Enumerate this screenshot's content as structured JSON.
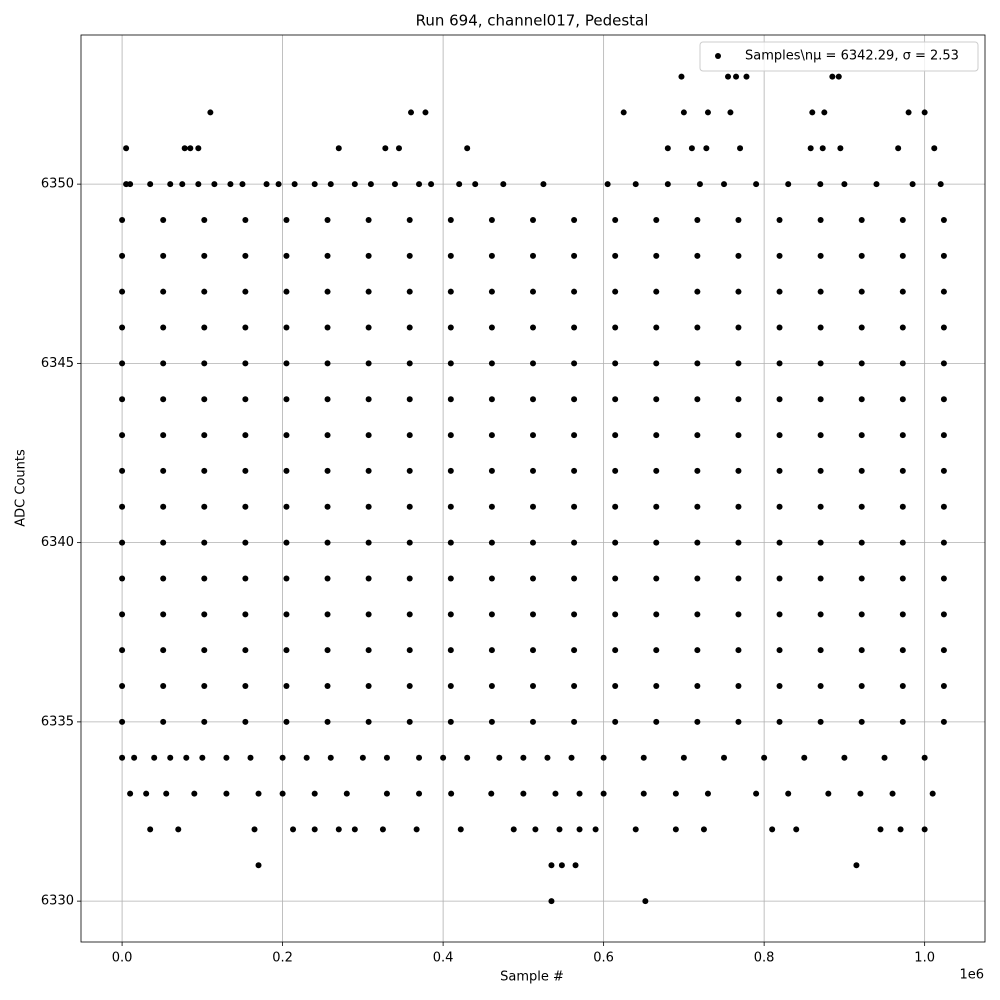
{
  "chart_data": {
    "type": "scatter",
    "title": "Run 694, channel017, Pedestal",
    "x_label": "Sample #",
    "y_label": "ADC Counts",
    "x_offset_label": "1e6",
    "xlim": [
      -51200,
      1075200
    ],
    "ylim": [
      6328.86,
      6354.16
    ],
    "xticks": [
      {
        "value": 0,
        "label": "0.0"
      },
      {
        "value": 200000,
        "label": "0.2"
      },
      {
        "value": 400000,
        "label": "0.4"
      },
      {
        "value": 600000,
        "label": "0.6"
      },
      {
        "value": 800000,
        "label": "0.8"
      },
      {
        "value": 1000000,
        "label": "1.0"
      }
    ],
    "yticks": [
      6330,
      6335,
      6340,
      6345,
      6350
    ],
    "grid": true,
    "legend_position": "upper-right",
    "x": [
      0,
      51200,
      102400,
      153600,
      204800,
      256000,
      307200,
      358400,
      409600,
      460800,
      512000,
      563200,
      614400,
      665600,
      716800,
      768000,
      819200,
      870400,
      921600,
      972800,
      1024000,
      0,
      51200,
      102400,
      153600,
      204800,
      256000,
      307200,
      358400,
      409600,
      460800,
      512000,
      563200,
      614400,
      665600,
      716800,
      768000,
      819200,
      870400,
      921600,
      972800,
      1024000,
      0,
      51200,
      102400,
      153600,
      204800,
      256000,
      307200,
      358400,
      409600,
      460800,
      512000,
      563200,
      614400,
      665600,
      716800,
      768000,
      819200,
      870400,
      921600,
      972800,
      1024000,
      0,
      51200,
      102400,
      153600,
      204800,
      256000,
      307200,
      358400,
      409600,
      460800,
      512000,
      563200,
      614400,
      665600,
      716800,
      768000,
      819200,
      870400,
      921600,
      972800,
      1024000,
      0,
      51200,
      102400,
      153600,
      204800,
      256000,
      307200,
      358400,
      409600,
      460800,
      512000,
      563200,
      614400,
      665600,
      716800,
      768000,
      819200,
      870400,
      921600,
      972800,
      1024000,
      0,
      51200,
      102400,
      153600,
      204800,
      256000,
      307200,
      358400,
      409600,
      460800,
      512000,
      563200,
      614400,
      665600,
      716800,
      768000,
      819200,
      870400,
      921600,
      972800,
      1024000,
      0,
      51200,
      102400,
      153600,
      204800,
      256000,
      307200,
      358400,
      409600,
      460800,
      512000,
      563200,
      614400,
      665600,
      716800,
      768000,
      819200,
      870400,
      921600,
      972800,
      1024000,
      0,
      51200,
      102400,
      153600,
      204800,
      256000,
      307200,
      358400,
      409600,
      460800,
      512000,
      563200,
      614400,
      665600,
      716800,
      768000,
      819200,
      870400,
      921600,
      972800,
      1024000,
      0,
      51200,
      102400,
      153600,
      204800,
      256000,
      307200,
      358400,
      409600,
      460800,
      512000,
      563200,
      614400,
      665600,
      716800,
      768000,
      819200,
      870400,
      921600,
      972800,
      1024000,
      0,
      51200,
      102400,
      153600,
      204800,
      256000,
      307200,
      358400,
      409600,
      460800,
      512000,
      563200,
      614400,
      665600,
      716800,
      768000,
      819200,
      870400,
      921600,
      972800,
      1024000,
      0,
      51200,
      102400,
      153600,
      204800,
      256000,
      307200,
      358400,
      409600,
      460800,
      512000,
      563200,
      614400,
      665600,
      716800,
      768000,
      819200,
      870400,
      921600,
      972800,
      1024000,
      0,
      51200,
      102400,
      153600,
      204800,
      256000,
      307200,
      358400,
      409600,
      460800,
      512000,
      563200,
      614400,
      665600,
      716800,
      768000,
      819200,
      870400,
      921600,
      972800,
      1024000,
      0,
      51200,
      102400,
      153600,
      204800,
      256000,
      307200,
      358400,
      409600,
      460800,
      512000,
      563200,
      614400,
      665600,
      716800,
      768000,
      819200,
      870400,
      921600,
      972800,
      1024000,
      0,
      51200,
      102400,
      153600,
      204800,
      256000,
      307200,
      358400,
      409600,
      460800,
      512000,
      563200,
      614400,
      665600,
      716800,
      768000,
      819200,
      870400,
      921600,
      972800,
      1024000,
      0,
      51200,
      102400,
      153600,
      204800,
      256000,
      307200,
      358400,
      409600,
      460800,
      512000,
      563200,
      614400,
      665600,
      716800,
      768000,
      819200,
      870400,
      921600,
      972800,
      1024000,
      5000,
      10000,
      35000,
      60000,
      75000,
      95000,
      115000,
      135000,
      150000,
      180000,
      195000,
      215000,
      240000,
      260000,
      290000,
      310000,
      340000,
      370000,
      385000,
      420000,
      440000,
      475000,
      525000,
      605000,
      640000,
      680000,
      720000,
      750000,
      790000,
      830000,
      870000,
      900000,
      940000,
      985000,
      1020000,
      0,
      15000,
      40000,
      60000,
      80000,
      100000,
      130000,
      160000,
      200000,
      230000,
      260000,
      300000,
      330000,
      370000,
      400000,
      430000,
      470000,
      500000,
      530000,
      560000,
      600000,
      650000,
      700000,
      750000,
      800000,
      850000,
      900000,
      950000,
      1000000,
      10000,
      30000,
      55000,
      90000,
      130000,
      170000,
      200000,
      240000,
      280000,
      330000,
      370000,
      410000,
      460000,
      500000,
      540000,
      570000,
      600000,
      650000,
      690000,
      730000,
      790000,
      830000,
      880000,
      920000,
      960000,
      1010000,
      35000,
      70000,
      165000,
      213000,
      240000,
      270000,
      290000,
      325000,
      367000,
      422000,
      488000,
      515000,
      545000,
      570000,
      590000,
      640000,
      690000,
      725000,
      810000,
      840000,
      945000,
      970000,
      1000000,
      170000,
      535000,
      548000,
      565000,
      915000,
      535000,
      652000,
      5000,
      78000,
      85000,
      95000,
      270000,
      328000,
      345000,
      430000,
      680000,
      710000,
      728000,
      770000,
      858000,
      873000,
      895000,
      967000,
      1012000,
      110000,
      360000,
      378000,
      625000,
      700000,
      730000,
      758000,
      860000,
      875000,
      980000,
      1000000,
      697000,
      755000,
      765000,
      778000,
      885000,
      893000
    ],
    "series": [
      {
        "name": "Samples\\nμ = 6342.29, σ = 2.53",
        "color": "#000000",
        "values": [
          6335,
          6335,
          6335,
          6335,
          6335,
          6335,
          6335,
          6335,
          6335,
          6335,
          6335,
          6335,
          6335,
          6335,
          6335,
          6335,
          6335,
          6335,
          6335,
          6335,
          6335,
          6336,
          6336,
          6336,
          6336,
          6336,
          6336,
          6336,
          6336,
          6336,
          6336,
          6336,
          6336,
          6336,
          6336,
          6336,
          6336,
          6336,
          6336,
          6336,
          6336,
          6336,
          6337,
          6337,
          6337,
          6337,
          6337,
          6337,
          6337,
          6337,
          6337,
          6337,
          6337,
          6337,
          6337,
          6337,
          6337,
          6337,
          6337,
          6337,
          6337,
          6337,
          6337,
          6338,
          6338,
          6338,
          6338,
          6338,
          6338,
          6338,
          6338,
          6338,
          6338,
          6338,
          6338,
          6338,
          6338,
          6338,
          6338,
          6338,
          6338,
          6338,
          6338,
          6338,
          6339,
          6339,
          6339,
          6339,
          6339,
          6339,
          6339,
          6339,
          6339,
          6339,
          6339,
          6339,
          6339,
          6339,
          6339,
          6339,
          6339,
          6339,
          6339,
          6339,
          6339,
          6340,
          6340,
          6340,
          6340,
          6340,
          6340,
          6340,
          6340,
          6340,
          6340,
          6340,
          6340,
          6340,
          6340,
          6340,
          6340,
          6340,
          6340,
          6340,
          6340,
          6340,
          6341,
          6341,
          6341,
          6341,
          6341,
          6341,
          6341,
          6341,
          6341,
          6341,
          6341,
          6341,
          6341,
          6341,
          6341,
          6341,
          6341,
          6341,
          6341,
          6341,
          6341,
          6342,
          6342,
          6342,
          6342,
          6342,
          6342,
          6342,
          6342,
          6342,
          6342,
          6342,
          6342,
          6342,
          6342,
          6342,
          6342,
          6342,
          6342,
          6342,
          6342,
          6342,
          6343,
          6343,
          6343,
          6343,
          6343,
          6343,
          6343,
          6343,
          6343,
          6343,
          6343,
          6343,
          6343,
          6343,
          6343,
          6343,
          6343,
          6343,
          6343,
          6343,
          6343,
          6344,
          6344,
          6344,
          6344,
          6344,
          6344,
          6344,
          6344,
          6344,
          6344,
          6344,
          6344,
          6344,
          6344,
          6344,
          6344,
          6344,
          6344,
          6344,
          6344,
          6344,
          6345,
          6345,
          6345,
          6345,
          6345,
          6345,
          6345,
          6345,
          6345,
          6345,
          6345,
          6345,
          6345,
          6345,
          6345,
          6345,
          6345,
          6345,
          6345,
          6345,
          6345,
          6346,
          6346,
          6346,
          6346,
          6346,
          6346,
          6346,
          6346,
          6346,
          6346,
          6346,
          6346,
          6346,
          6346,
          6346,
          6346,
          6346,
          6346,
          6346,
          6346,
          6346,
          6347,
          6347,
          6347,
          6347,
          6347,
          6347,
          6347,
          6347,
          6347,
          6347,
          6347,
          6347,
          6347,
          6347,
          6347,
          6347,
          6347,
          6347,
          6347,
          6347,
          6347,
          6348,
          6348,
          6348,
          6348,
          6348,
          6348,
          6348,
          6348,
          6348,
          6348,
          6348,
          6348,
          6348,
          6348,
          6348,
          6348,
          6348,
          6348,
          6348,
          6348,
          6348,
          6349,
          6349,
          6349,
          6349,
          6349,
          6349,
          6349,
          6349,
          6349,
          6349,
          6349,
          6349,
          6349,
          6349,
          6349,
          6349,
          6349,
          6349,
          6349,
          6349,
          6349,
          6350,
          6350,
          6350,
          6350,
          6350,
          6350,
          6350,
          6350,
          6350,
          6350,
          6350,
          6350,
          6350,
          6350,
          6350,
          6350,
          6350,
          6350,
          6350,
          6350,
          6350,
          6350,
          6350,
          6350,
          6350,
          6350,
          6350,
          6350,
          6350,
          6350,
          6350,
          6350,
          6350,
          6350,
          6350,
          6334,
          6334,
          6334,
          6334,
          6334,
          6334,
          6334,
          6334,
          6334,
          6334,
          6334,
          6334,
          6334,
          6334,
          6334,
          6334,
          6334,
          6334,
          6334,
          6334,
          6334,
          6334,
          6334,
          6334,
          6334,
          6334,
          6334,
          6334,
          6334,
          6333,
          6333,
          6333,
          6333,
          6333,
          6333,
          6333,
          6333,
          6333,
          6333,
          6333,
          6333,
          6333,
          6333,
          6333,
          6333,
          6333,
          6333,
          6333,
          6333,
          6333,
          6333,
          6333,
          6333,
          6333,
          6333,
          6332,
          6332,
          6332,
          6332,
          6332,
          6332,
          6332,
          6332,
          6332,
          6332,
          6332,
          6332,
          6332,
          6332,
          6332,
          6332,
          6332,
          6332,
          6332,
          6332,
          6332,
          6332,
          6332,
          6331,
          6331,
          6331,
          6331,
          6331,
          6330,
          6330,
          6351,
          6351,
          6351,
          6351,
          6351,
          6351,
          6351,
          6351,
          6351,
          6351,
          6351,
          6351,
          6351,
          6351,
          6351,
          6351,
          6351,
          6352,
          6352,
          6352,
          6352,
          6352,
          6352,
          6352,
          6352,
          6352,
          6352,
          6352,
          6353,
          6353,
          6353,
          6353,
          6353,
          6353
        ]
      }
    ]
  }
}
